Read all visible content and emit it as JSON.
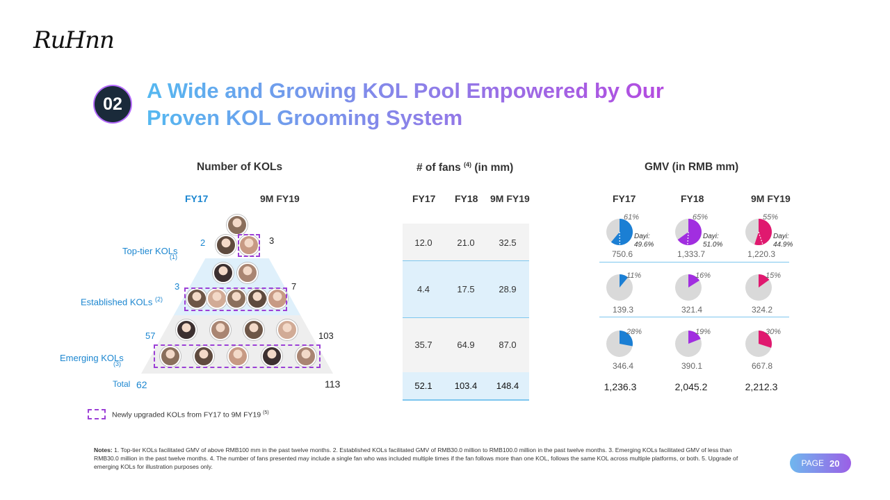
{
  "logo": "RuHnn",
  "section_number": "02",
  "title": {
    "line1": "A Wide and Growing KOL Pool Empowered by Our",
    "line2": "Proven KOL Grooming System"
  },
  "kol_panel": {
    "header": "Number of KOLs",
    "year_left": "FY17",
    "year_right": "9M FY19",
    "rows": [
      {
        "label": "Top-tier KOLs",
        "note": "(1)",
        "left": "2",
        "right": "3"
      },
      {
        "label": "Established KOLs",
        "note": "(2)",
        "left": "3",
        "right": "7"
      },
      {
        "label": "Emerging KOLs",
        "note": "(3)",
        "left": "57",
        "right": "103"
      }
    ],
    "total_label": "Total",
    "total_left": "62",
    "total_right": "113"
  },
  "fans_panel": {
    "header": "# of fans",
    "header_note": "(4)",
    "header_unit": "(in mm)",
    "years": [
      "FY17",
      "FY18",
      "9M FY19"
    ],
    "rows": [
      [
        "12.0",
        "21.0",
        "32.5"
      ],
      [
        "4.4",
        "17.5",
        "28.9"
      ],
      [
        "35.7",
        "64.9",
        "87.0"
      ]
    ],
    "totals": [
      "52.1",
      "103.4",
      "148.4"
    ]
  },
  "gmv_panel": {
    "header": "GMV (in RMB mm)",
    "years": [
      "FY17",
      "FY18",
      "9M FY19"
    ],
    "colors": [
      "#1b7fd4",
      "#a12ee0",
      "#e0196f"
    ],
    "rows": [
      {
        "pcts": [
          "61%",
          "65%",
          "55%"
        ],
        "shares": [
          0.61,
          0.65,
          0.55
        ],
        "values": [
          "750.6",
          "1,333.7",
          "1,220.3"
        ],
        "dayi": [
          {
            "label": "Dayi:",
            "value": "49.6%",
            "share": 0.496
          },
          {
            "label": "Dayi:",
            "value": "51.0%",
            "share": 0.51
          },
          {
            "label": "Dayi:",
            "value": "44.9%",
            "share": 0.449
          }
        ]
      },
      {
        "pcts": [
          "11%",
          "16%",
          "15%"
        ],
        "shares": [
          0.11,
          0.16,
          0.15
        ],
        "values": [
          "139.3",
          "321.4",
          "324.2"
        ]
      },
      {
        "pcts": [
          "28%",
          "19%",
          "30%"
        ],
        "shares": [
          0.28,
          0.19,
          0.3
        ],
        "values": [
          "346.4",
          "390.1",
          "667.8"
        ]
      }
    ],
    "totals": [
      "1,236.3",
      "2,045.2",
      "2,212.3"
    ]
  },
  "legend": {
    "text": "Newly upgraded KOLs from FY17 to 9M FY19",
    "note": "(5)"
  },
  "notes": {
    "label": "Notes:",
    "text": "1. Top-tier KOLs facilitated GMV of above RMB100 mm in the past twelve months. 2. Established KOLs facilitated GMV of RMB30.0 million to RMB100.0 million in the past twelve months. 3. Emerging KOLs facilitated GMV of less than RMB30.0 million in the past twelve months. 4. The number of fans presented may include a single fan who was included multiple times if the fan follows more than one KOL, follows the same KOL across multiple platforms, or both.  5. Upgrade of emerging KOLs for illustration purposes only."
  },
  "page": {
    "label": "PAGE",
    "number": "20"
  }
}
